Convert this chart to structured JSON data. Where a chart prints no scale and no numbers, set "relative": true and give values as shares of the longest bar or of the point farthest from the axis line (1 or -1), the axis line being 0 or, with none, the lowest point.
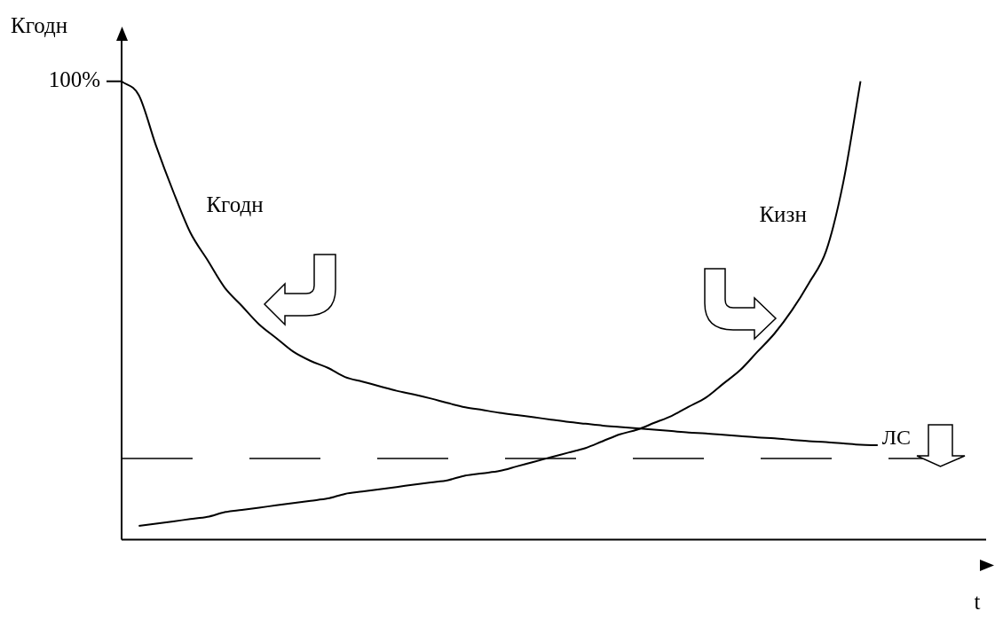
{
  "chart_data": {
    "type": "line",
    "xlabel": "t",
    "ylabel": "Кгодн",
    "relative": true,
    "marker": "none",
    "categories": [
      null,
      null,
      null,
      null,
      null,
      null,
      null,
      null,
      null,
      null,
      null,
      null,
      null,
      null,
      null,
      null,
      null,
      null,
      null,
      null,
      null,
      null,
      null,
      null,
      null,
      null,
      null,
      null,
      null,
      null,
      null,
      null,
      null,
      null,
      null,
      null,
      null,
      null,
      null,
      null,
      null,
      null,
      null,
      null,
      null,
      null,
      null,
      null,
      null,
      null,
      null
    ],
    "series": [
      {
        "name": "Кгодн",
        "color": "#000000",
        "values": [
          1.0,
          0.97,
          0.86,
          0.76,
          0.67,
          0.61,
          0.55,
          0.51,
          0.47,
          0.44,
          0.41,
          0.39,
          0.375,
          0.355,
          0.345,
          0.335,
          0.325,
          0.317,
          0.308,
          0.298,
          0.289,
          0.283,
          0.277,
          0.272,
          0.267,
          0.262,
          0.257,
          0.253,
          0.249,
          0.246,
          0.243,
          0.24,
          0.237,
          0.234,
          0.232,
          0.229,
          0.226,
          0.223,
          0.221,
          0.218,
          0.215,
          0.213,
          0.21,
          0.207,
          0.206,
          null,
          null,
          null,
          null,
          null,
          null
        ]
      },
      {
        "name": "Кизн",
        "color": "#000000",
        "values": [
          null,
          0.03,
          0.035,
          0.04,
          0.045,
          0.05,
          0.06,
          0.065,
          0.07,
          0.075,
          0.08,
          0.085,
          0.09,
          0.1,
          0.105,
          0.11,
          0.115,
          0.12,
          0.125,
          0.13,
          0.14,
          0.145,
          0.15,
          0.16,
          0.17,
          0.18,
          0.19,
          0.2,
          0.215,
          0.23,
          0.24,
          0.255,
          0.27,
          0.29,
          0.31,
          0.34,
          0.37,
          0.41,
          0.45,
          0.5,
          0.56,
          0.63,
          0.78,
          1.0,
          null,
          null,
          null,
          null,
          null,
          null,
          null
        ]
      }
    ],
    "ref_lines": [
      {
        "axis": "y",
        "value": 0.177,
        "label": "ЛС",
        "line_style": "dashed",
        "color": "#000000"
      }
    ],
    "annotations": [
      "100%"
    ]
  }
}
